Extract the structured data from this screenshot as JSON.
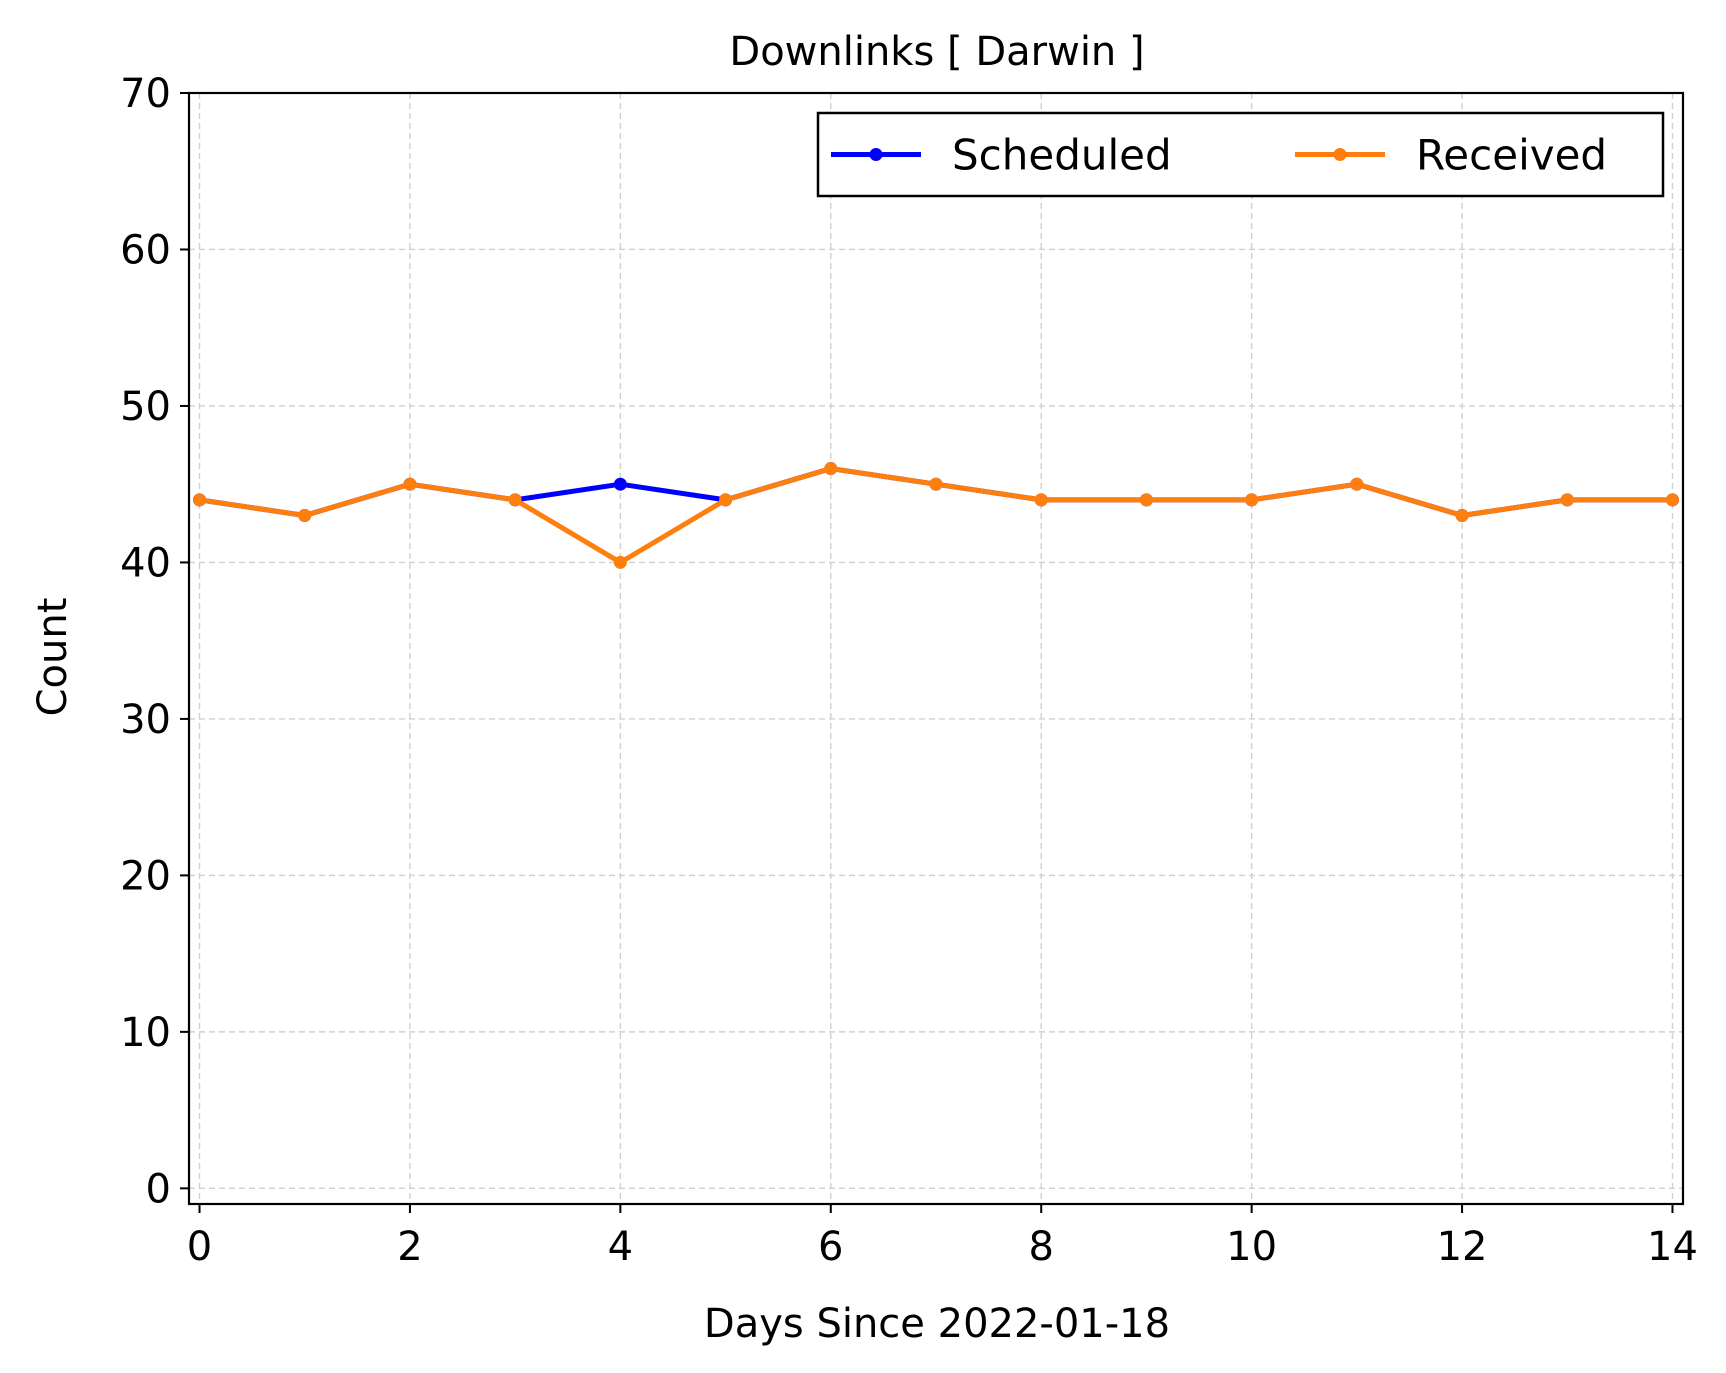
{
  "chart_data": {
    "type": "line",
    "title": "Downlinks [ Darwin ]",
    "xlabel": "Days Since 2022-01-18",
    "ylabel": "Count",
    "xlim": [
      -0.1,
      14.1
    ],
    "ylim": [
      -1,
      70
    ],
    "xticks": [
      0,
      2,
      4,
      6,
      8,
      10,
      12,
      14
    ],
    "yticks": [
      0,
      10,
      20,
      30,
      40,
      50,
      60,
      70
    ],
    "grid": true,
    "legend_position": "top-right",
    "x": [
      0,
      1,
      2,
      3,
      4,
      5,
      6,
      7,
      8,
      9,
      10,
      11,
      12,
      13,
      14
    ],
    "series": [
      {
        "name": "Scheduled",
        "color": "#0000ff",
        "values": [
          44,
          43,
          45,
          44,
          45,
          44,
          46,
          45,
          44,
          44,
          44,
          45,
          43,
          44,
          44
        ]
      },
      {
        "name": "Received",
        "color": "#ff7f0e",
        "values": [
          44,
          43,
          45,
          44,
          40,
          44,
          46,
          45,
          44,
          44,
          44,
          45,
          43,
          44,
          44
        ]
      }
    ]
  }
}
